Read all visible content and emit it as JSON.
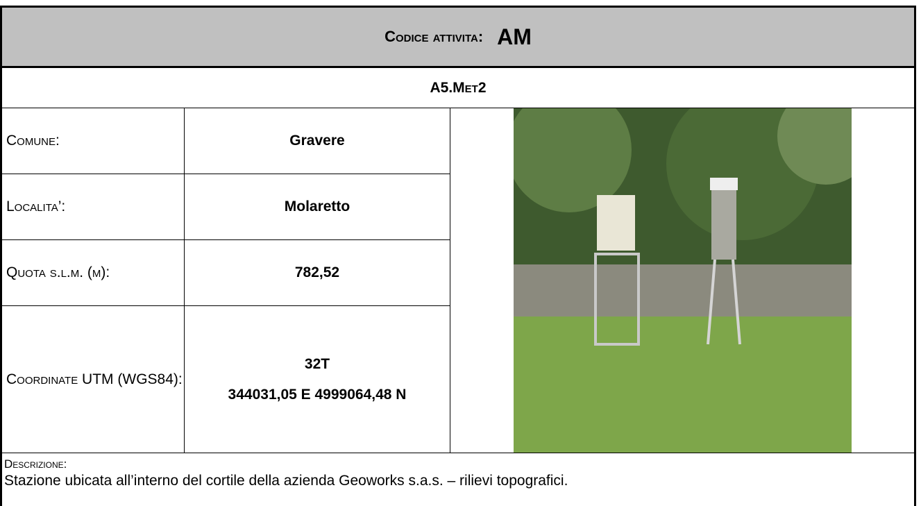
{
  "header": {
    "label": "Codice attivita:",
    "code": "AM"
  },
  "station": "A5.Met2",
  "fields": [
    {
      "label": "Comune:",
      "value": "Gravere"
    },
    {
      "label": "Localita’:",
      "value": "Molaretto"
    },
    {
      "label": "Quota s.l.m. (m):",
      "value": "782,52"
    },
    {
      "label": "Coordinate UTM (WGS84):",
      "value": [
        "32T",
        "344031,05 E 4999064,48 N"
      ]
    }
  ],
  "description": {
    "label": "Descrizione:",
    "text": "Stazione ubicata all’interno del cortile della azienda Geoworks s.a.s. – rilievi topografici."
  }
}
